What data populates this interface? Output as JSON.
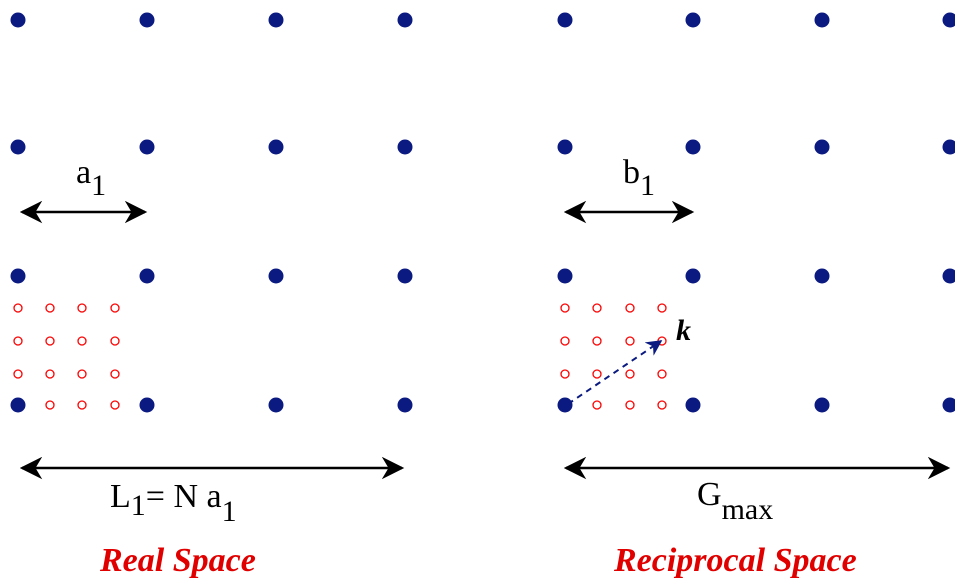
{
  "colors": {
    "lattice_point": "#0b1a80",
    "grid_point": "#ff0000",
    "k_vector": "#0b1a80",
    "arrow": "#000000",
    "caption": "#e00000"
  },
  "real_space": {
    "a1_label": {
      "main": "a",
      "sub": "1"
    },
    "L1_label": {
      "main": "L",
      "sub": "1",
      "rest": "= N a",
      "sub2": "1"
    },
    "caption": "Real Space"
  },
  "reciprocal_space": {
    "b1_label": {
      "main": "b",
      "sub": "1"
    },
    "k_label": "k",
    "Gmax_label": {
      "main": "G",
      "sub": "max"
    },
    "caption": "Reciprocal Space"
  }
}
